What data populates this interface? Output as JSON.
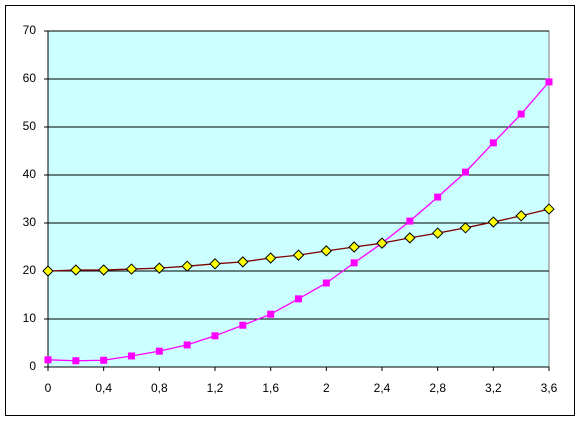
{
  "chart_data": {
    "type": "line",
    "x": [
      0,
      0.2,
      0.4,
      0.6,
      0.8,
      1.0,
      1.2,
      1.4,
      1.6,
      1.8,
      2.0,
      2.2,
      2.4,
      2.6,
      2.8,
      3.0,
      3.2,
      3.4,
      3.6
    ],
    "series": [
      {
        "color": "#ff00ff",
        "marker": "square",
        "marker_color": "#ff00ff",
        "values": [
          1.5,
          1.3,
          1.4,
          2.3,
          3.3,
          4.6,
          6.5,
          8.7,
          11,
          14.2,
          17.5,
          21.7,
          25.8,
          30.4,
          35.4,
          40.6,
          46.7,
          52.7,
          59.4
        ]
      },
      {
        "color": "#800000",
        "marker": "diamond",
        "marker_color": "#ffff00",
        "values": [
          20,
          20.2,
          20.2,
          20.4,
          20.6,
          21,
          21.5,
          21.9,
          22.7,
          23.3,
          24.2,
          25,
          25.8,
          26.9,
          27.9,
          29,
          30.2,
          31.5,
          32.9
        ]
      }
    ],
    "xlim": [
      0,
      3.6
    ],
    "xticks": [
      0,
      {
        "value": 0.4,
        "label": "0,4"
      },
      {
        "value": 0.8,
        "label": "0,8"
      },
      {
        "value": 1.2,
        "label": "1,2"
      },
      {
        "value": 1.6,
        "label": "1,6"
      },
      2,
      {
        "value": 2.4,
        "label": "2,4"
      },
      {
        "value": 2.8,
        "label": "2,8"
      },
      {
        "value": 3.2,
        "label": "3,2"
      },
      {
        "value": 3.6,
        "label": "3,6"
      }
    ],
    "ylim": [
      0,
      70
    ],
    "yticks": [
      0,
      10,
      20,
      30,
      40,
      50,
      60,
      70
    ],
    "grid": true,
    "plot_background": "#ccffff"
  }
}
